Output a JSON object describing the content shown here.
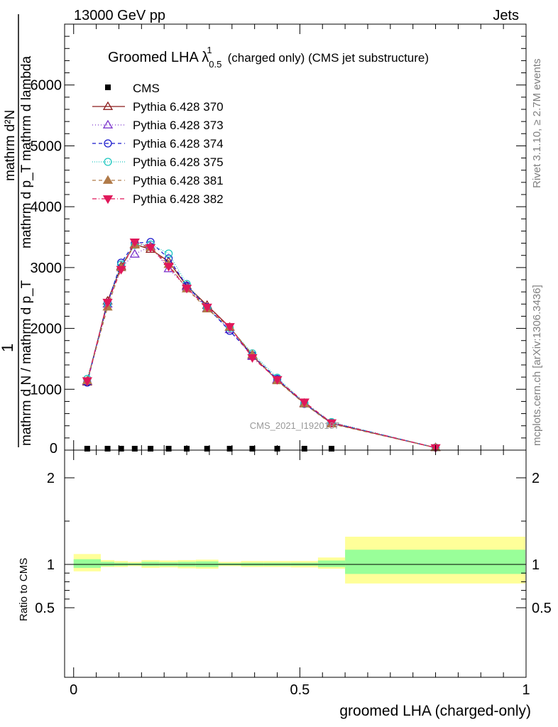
{
  "header": {
    "left": "13000 GeV pp",
    "right": "Jets"
  },
  "side_labels": {
    "top": "Rivet 3.1.10, ≥ 2.7M events",
    "bottom": "mcplots.cern.ch [arXiv:1306.3436]"
  },
  "watermark": "CMS_2021_I1920187",
  "chart_data": {
    "type": "line",
    "title_main": "Groomed LHA ",
    "title_lambda": "λ",
    "title_sup": "1",
    "title_sub": "0.5",
    "title_rest": "(charged only) (CMS jet substructure)",
    "ylabel_top": "mathrm d²N",
    "ylabel_top_right": "mathrm d p_T mathrm d lambda",
    "ylabel_bottom": "mathrm d N / mathrm d p_T",
    "ylabel_one": "1",
    "ratio_ylabel": "Ratio to CMS",
    "xlabel": "groomed LHA (charged-only)",
    "xlim": [
      -0.02,
      1.0
    ],
    "ylim": [
      0,
      7000
    ],
    "ratio_ylim": [
      0.4,
      2.3
    ],
    "x_ticks": [
      {
        "v": 0,
        "label": "0"
      },
      {
        "v": 0.5,
        "label": "0.5"
      },
      {
        "v": 1,
        "label": "1"
      }
    ],
    "y_ticks": [
      {
        "v": 1000,
        "label": "1000"
      },
      {
        "v": 2000,
        "label": "2000"
      },
      {
        "v": 3000,
        "label": "3000"
      },
      {
        "v": 4000,
        "label": "4000"
      },
      {
        "v": 5000,
        "label": "5000"
      },
      {
        "v": 6000,
        "label": "6000"
      }
    ],
    "ratio_ticks": [
      {
        "v": 0.5,
        "label": "0.5"
      },
      {
        "v": 1,
        "label": "1"
      },
      {
        "v": 2,
        "label": "2"
      }
    ],
    "x": [
      0.03,
      0.075,
      0.105,
      0.135,
      0.17,
      0.21,
      0.25,
      0.295,
      0.345,
      0.395,
      0.45,
      0.51,
      0.57,
      0.8
    ],
    "cms": {
      "name": "CMS",
      "color": "#000000",
      "values": [
        12,
        12,
        12,
        12,
        12,
        12,
        12,
        12,
        12,
        12,
        12,
        12,
        12,
        0
      ]
    },
    "series": [
      {
        "name": "Pythia 6.428 370",
        "color": "#8b1a1a",
        "dash": "",
        "marker": "triangle-up-open",
        "values": [
          1120,
          2450,
          3020,
          3380,
          3300,
          3100,
          2700,
          2380,
          2020,
          1550,
          1150,
          770,
          440,
          40
        ]
      },
      {
        "name": "Pythia 6.428 373",
        "color": "#7b33cc",
        "dash": "1,3",
        "marker": "triangle-up-open",
        "values": [
          1130,
          2400,
          3000,
          3220,
          3350,
          2980,
          2680,
          2330,
          1980,
          1540,
          1160,
          760,
          440,
          40
        ]
      },
      {
        "name": "Pythia 6.428 374",
        "color": "#1818cc",
        "dash": "5,4",
        "marker": "circle-open",
        "values": [
          1110,
          2420,
          3080,
          3400,
          3420,
          3150,
          2700,
          2350,
          1960,
          1560,
          1170,
          760,
          450,
          40
        ]
      },
      {
        "name": "Pythia 6.428 375",
        "color": "#20c8c0",
        "dash": "1,2",
        "marker": "circle-open",
        "values": [
          1170,
          2400,
          3050,
          3370,
          3380,
          3230,
          2730,
          2330,
          2010,
          1590,
          1190,
          780,
          460,
          40
        ]
      },
      {
        "name": "Pythia 6.428 381",
        "color": "#b07a48",
        "dash": "5,4",
        "marker": "triangle-up-filled",
        "values": [
          1140,
          2350,
          3000,
          3370,
          3330,
          3050,
          2650,
          2320,
          2020,
          1570,
          1140,
          760,
          430,
          40
        ]
      },
      {
        "name": "Pythia 6.428 382",
        "color": "#e0185a",
        "dash": "6,3,1,3",
        "marker": "triangle-down-filled",
        "values": [
          1140,
          2430,
          2970,
          3420,
          3330,
          3020,
          2660,
          2350,
          2030,
          1520,
          1160,
          790,
          450,
          40
        ]
      }
    ],
    "ratio_bands": [
      {
        "x0": 0.0,
        "x1": 0.06,
        "yellow": [
          0.92,
          1.12
        ],
        "green": [
          0.96,
          1.06
        ]
      },
      {
        "x0": 0.06,
        "x1": 0.09,
        "yellow": [
          0.97,
          1.05
        ],
        "green": [
          0.98,
          1.03
        ]
      },
      {
        "x0": 0.09,
        "x1": 0.12,
        "yellow": [
          0.97,
          1.04
        ],
        "green": [
          0.985,
          1.02
        ]
      },
      {
        "x0": 0.12,
        "x1": 0.15,
        "yellow": [
          0.98,
          1.03
        ],
        "green": [
          0.99,
          1.015
        ]
      },
      {
        "x0": 0.15,
        "x1": 0.19,
        "yellow": [
          0.96,
          1.05
        ],
        "green": [
          0.98,
          1.03
        ]
      },
      {
        "x0": 0.19,
        "x1": 0.23,
        "yellow": [
          0.965,
          1.045
        ],
        "green": [
          0.98,
          1.025
        ]
      },
      {
        "x0": 0.23,
        "x1": 0.27,
        "yellow": [
          0.955,
          1.05
        ],
        "green": [
          0.975,
          1.03
        ]
      },
      {
        "x0": 0.27,
        "x1": 0.32,
        "yellow": [
          0.95,
          1.055
        ],
        "green": [
          0.97,
          1.035
        ]
      },
      {
        "x0": 0.32,
        "x1": 0.37,
        "yellow": [
          0.98,
          1.03
        ],
        "green": [
          0.99,
          1.015
        ]
      },
      {
        "x0": 0.37,
        "x1": 0.42,
        "yellow": [
          0.97,
          1.04
        ],
        "green": [
          0.985,
          1.02
        ]
      },
      {
        "x0": 0.42,
        "x1": 0.48,
        "yellow": [
          0.97,
          1.04
        ],
        "green": [
          0.985,
          1.02
        ]
      },
      {
        "x0": 0.48,
        "x1": 0.54,
        "yellow": [
          0.965,
          1.04
        ],
        "green": [
          0.985,
          1.02
        ]
      },
      {
        "x0": 0.54,
        "x1": 0.6,
        "yellow": [
          0.95,
          1.08
        ],
        "green": [
          0.97,
          1.045
        ]
      },
      {
        "x0": 0.6,
        "x1": 1.0,
        "yellow": [
          0.78,
          1.32
        ],
        "green": [
          0.89,
          1.17
        ]
      }
    ]
  }
}
